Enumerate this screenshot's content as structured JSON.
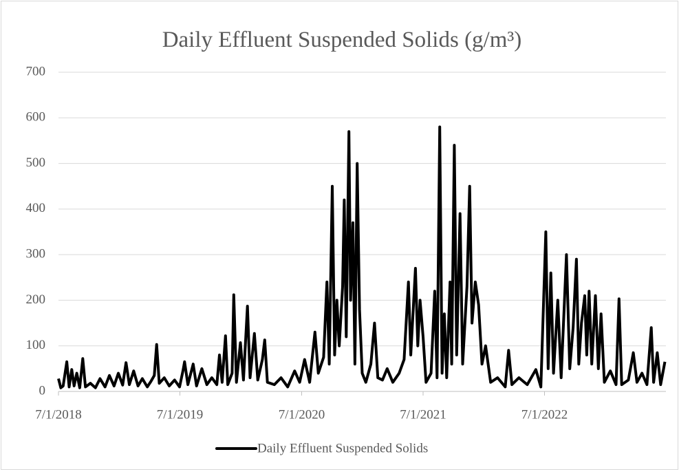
{
  "chart_data": {
    "type": "line",
    "title": "Daily Effluent Suspended Solids (g/m³)",
    "x": [
      "7/1/2018",
      "7/8/2018",
      "7/15/2018",
      "7/26/2018",
      "8/2/2018",
      "8/10/2018",
      "8/17/2018",
      "8/25/2018",
      "9/3/2018",
      "9/12/2018",
      "9/20/2018",
      "10/5/2018",
      "10/20/2018",
      "11/3/2018",
      "11/18/2018",
      "12/1/2018",
      "12/15/2018",
      "12/28/2018",
      "1/10/2019",
      "1/20/2019",
      "1/30/2019",
      "2/12/2019",
      "2/25/2019",
      "3/10/2019",
      "3/25/2019",
      "4/5/2019",
      "4/15/2019",
      "4/22/2019",
      "4/30/2019",
      "5/15/2019",
      "5/30/2019",
      "6/15/2019",
      "6/30/2019",
      "7/10/2019",
      "7/15/2019",
      "7/25/2019",
      "8/10/2019",
      "8/20/2019",
      "9/5/2019",
      "9/20/2019",
      "10/5/2019",
      "10/20/2019",
      "10/28/2019",
      "11/5/2019",
      "11/15/2019",
      "11/22/2019",
      "12/5/2019",
      "12/10/2019",
      "12/18/2019",
      "12/30/2019",
      "1/8/2020",
      "1/20/2020",
      "1/28/2020",
      "2/10/2020",
      "2/20/2020",
      "3/5/2020",
      "3/12/2020",
      "3/20/2020",
      "4/10/2020",
      "4/30/2020",
      "5/20/2020",
      "6/10/2020",
      "6/25/2020",
      "7/10/2020",
      "7/25/2020",
      "8/10/2020",
      "8/20/2020",
      "9/5/2020",
      "9/15/2020",
      "9/22/2020",
      "10/1/2020",
      "10/8/2020",
      "10/15/2020",
      "10/22/2020",
      "11/1/2020",
      "11/6/2020",
      "11/12/2020",
      "11/20/2020",
      "11/25/2020",
      "12/2/2020",
      "12/8/2020",
      "12/15/2020",
      "12/22/2020",
      "12/30/2020",
      "1/10/2021",
      "1/25/2021",
      "2/5/2021",
      "2/15/2021",
      "3/1/2021",
      "3/15/2021",
      "4/1/2021",
      "4/20/2021",
      "5/5/2021",
      "5/18/2021",
      "5/25/2021",
      "6/8/2021",
      "6/15/2021",
      "6/22/2021",
      "7/1/2021",
      "7/10/2021",
      "7/25/2021",
      "8/5/2021",
      "8/12/2021",
      "8/20/2021",
      "8/27/2021",
      "9/3/2021",
      "9/10/2021",
      "9/20/2021",
      "9/25/2021",
      "10/3/2021",
      "10/10/2021",
      "10/20/2021",
      "10/28/2021",
      "11/10/2021",
      "11/18/2021",
      "11/25/2021",
      "12/5/2021",
      "12/15/2021",
      "12/25/2021",
      "1/5/2022",
      "1/20/2022",
      "2/10/2022",
      "3/5/2022",
      "3/15/2022",
      "3/25/2022",
      "4/15/2022",
      "5/10/2022",
      "6/5/2022",
      "6/20/2022",
      "7/5/2022",
      "7/12/2022",
      "7/20/2022",
      "7/28/2022",
      "8/10/2022",
      "8/20/2022",
      "9/5/2022",
      "9/15/2022",
      "9/25/2022",
      "10/5/2022",
      "10/12/2022",
      "10/20/2022",
      "10/30/2022",
      "11/5/2022",
      "11/12/2022",
      "11/20/2022",
      "12/1/2022",
      "12/10/2022",
      "12/18/2022",
      "12/28/2022",
      "1/15/2023",
      "2/1/2023",
      "2/10/2023",
      "2/18/2023",
      "3/10/2023",
      "3/25/2023",
      "4/5/2023",
      "4/20/2023",
      "5/5/2023",
      "5/18/2023",
      "5/25/2023",
      "6/5/2023",
      "6/15/2023",
      "6/28/2023"
    ],
    "series": [
      {
        "name": "Daily Effluent Suspended Solids",
        "color": "#000000",
        "values": [
          28,
          8,
          12,
          65,
          10,
          48,
          12,
          40,
          8,
          72,
          10,
          18,
          8,
          28,
          10,
          35,
          12,
          40,
          14,
          63,
          15,
          45,
          12,
          28,
          10,
          22,
          35,
          103,
          18,
          30,
          12,
          25,
          10,
          45,
          65,
          15,
          60,
          12,
          50,
          15,
          30,
          15,
          80,
          20,
          122,
          15,
          40,
          212,
          20,
          107,
          25,
          187,
          30,
          127,
          25,
          70,
          113,
          20,
          15,
          30,
          10,
          45,
          20,
          70,
          20,
          130,
          40,
          75,
          240,
          60,
          450,
          80,
          200,
          100,
          230,
          420,
          120,
          570,
          200,
          370,
          60,
          500,
          180,
          40,
          20,
          60,
          150,
          30,
          25,
          50,
          20,
          40,
          70,
          240,
          80,
          270,
          100,
          200,
          120,
          20,
          40,
          220,
          30,
          580,
          40,
          170,
          30,
          240,
          60,
          540,
          80,
          390,
          60,
          230,
          450,
          150,
          240,
          190,
          60,
          100,
          20,
          30,
          10,
          90,
          15,
          30,
          15,
          48,
          10,
          350,
          50,
          260,
          40,
          200,
          30,
          300,
          50,
          140,
          290,
          60,
          150,
          210,
          80,
          220,
          60,
          210,
          50,
          170,
          20,
          45,
          15,
          203,
          15,
          25,
          85,
          20,
          40,
          15,
          140,
          20,
          85,
          15,
          65
        ]
      }
    ],
    "xlim": [
      "7/1/2018",
      "7/1/2023"
    ],
    "xticks": [
      "7/1/2018",
      "7/1/2019",
      "7/1/2020",
      "7/1/2021",
      "7/1/2022"
    ],
    "ylim": [
      0,
      700
    ],
    "yticks": [
      0,
      100,
      200,
      300,
      400,
      500,
      600,
      700
    ],
    "grid": true,
    "legend": "bottom"
  }
}
